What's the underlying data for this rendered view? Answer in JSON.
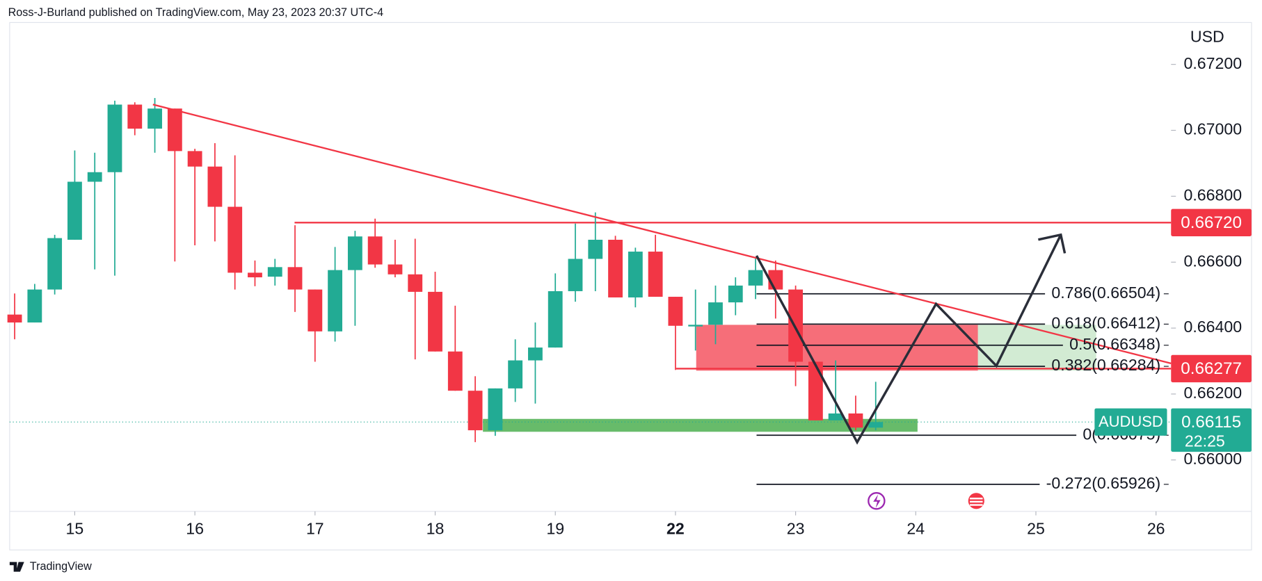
{
  "header": "Ross-J-Burland published on TradingView.com, May 23, 2023 20:37 UTC-4",
  "footer": "TradingView",
  "chart_data": {
    "type": "candlestick",
    "y_axis_label": "USD",
    "up_color": "#22ab94",
    "down_color": "#f23645",
    "x": [
      -12,
      -8,
      -4,
      0,
      4,
      8,
      12,
      16,
      20,
      24,
      28,
      32,
      36,
      40,
      44,
      48,
      52,
      56,
      60,
      64,
      68,
      72,
      76,
      80,
      84,
      88,
      92,
      96,
      100,
      104,
      108,
      112,
      116,
      120,
      124,
      128,
      132,
      136,
      140,
      144,
      148,
      152,
      156,
      160
    ],
    "open": [
      0.66441,
      0.66417,
      0.66517,
      0.66668,
      0.66844,
      0.66873,
      0.67078,
      0.67005,
      0.67066,
      0.66937,
      0.6689,
      0.66768,
      0.66568,
      0.66556,
      0.66585,
      0.66517,
      0.6639,
      0.66576,
      0.66678,
      0.66593,
      0.66563,
      0.6651,
      0.66329,
      0.6621,
      0.6609,
      0.66217,
      0.66302,
      0.66341,
      0.66512,
      0.6661,
      0.66668,
      0.66493,
      0.66632,
      0.66495,
      0.66405,
      0.6641,
      0.66478,
      0.66529,
      0.66576,
      0.66517,
      0.66298,
      0.6612,
      0.66141,
      0.66098
    ],
    "high": [
      0.66505,
      0.66534,
      0.66683,
      0.66939,
      0.66932,
      0.6709,
      0.67085,
      0.67098,
      0.67066,
      0.66944,
      0.66961,
      0.66924,
      0.66605,
      0.6661,
      0.66712,
      0.66517,
      0.66646,
      0.66695,
      0.66732,
      0.66668,
      0.66671,
      0.66571,
      0.66468,
      0.66254,
      0.66217,
      0.66366,
      0.66417,
      0.66566,
      0.66717,
      0.66751,
      0.6668,
      0.66644,
      0.66683,
      0.66495,
      0.66517,
      0.66529,
      0.66554,
      0.66615,
      0.66605,
      0.66529,
      0.66298,
      0.66302,
      0.66195,
      0.66237
    ],
    "low": [
      0.66366,
      0.66417,
      0.66502,
      0.66668,
      0.66578,
      0.66559,
      0.66985,
      0.66932,
      0.66602,
      0.66651,
      0.66663,
      0.66517,
      0.66527,
      0.66529,
      0.66449,
      0.66298,
      0.66359,
      0.66407,
      0.66583,
      0.66554,
      0.66305,
      0.66329,
      0.6621,
      0.66054,
      0.66073,
      0.66176,
      0.66171,
      0.66341,
      0.6648,
      0.66512,
      0.66493,
      0.66463,
      0.66495,
      0.66273,
      0.66332,
      0.66351,
      0.66439,
      0.66488,
      0.66429,
      0.66224,
      0.6612,
      0.6612,
      0.6609,
      0.6609
    ],
    "close": [
      0.66417,
      0.66517,
      0.66673,
      0.66844,
      0.66873,
      0.67078,
      0.67005,
      0.67066,
      0.66937,
      0.6689,
      0.66768,
      0.66568,
      0.66554,
      0.66585,
      0.66517,
      0.6639,
      0.66576,
      0.66678,
      0.66593,
      0.66563,
      0.6651,
      0.66329,
      0.6621,
      0.6609,
      0.66217,
      0.66302,
      0.66341,
      0.66512,
      0.6661,
      0.66668,
      0.66493,
      0.66632,
      0.66495,
      0.66407,
      0.6641,
      0.66478,
      0.66529,
      0.66576,
      0.66517,
      0.66298,
      0.6612,
      0.66141,
      0.66098,
      0.66115
    ],
    "xlim": [
      -13,
      219
    ],
    "xticks": [
      {
        "value": 0,
        "label": "15"
      },
      {
        "value": 24,
        "label": "16"
      },
      {
        "value": 48,
        "label": "17"
      },
      {
        "value": 72,
        "label": "18"
      },
      {
        "value": 96,
        "label": "19"
      },
      {
        "value": 120,
        "label": "22"
      },
      {
        "value": 144,
        "label": "23"
      },
      {
        "value": 168,
        "label": "24"
      },
      {
        "value": 192,
        "label": "25"
      },
      {
        "value": 216,
        "label": "26"
      }
    ],
    "bold_xtick_index": 5,
    "ylim": [
      0.65844,
      0.67327
    ],
    "yticks": [
      {
        "value": 0.672,
        "label": "0.67200"
      },
      {
        "value": 0.67,
        "label": "0.67000"
      },
      {
        "value": 0.668,
        "label": "0.66800"
      },
      {
        "value": 0.666,
        "label": "0.66600"
      },
      {
        "value": 0.664,
        "label": "0.66400"
      },
      {
        "value": 0.662,
        "label": "0.66200"
      },
      {
        "value": 0.66,
        "label": "0.66000"
      }
    ],
    "price_lines": [
      {
        "value": 0.6672,
        "label": "0.66720",
        "color": "#f23645"
      },
      {
        "value": 0.66277,
        "label": "0.66277",
        "color": "#f23645"
      }
    ],
    "fib_levels": [
      {
        "value": 0.66504,
        "label": "0.786(0.66504)"
      },
      {
        "value": 0.66412,
        "label": "0.618(0.66412)"
      },
      {
        "value": 0.66348,
        "label": "0.5(0.66348)"
      },
      {
        "value": 0.66284,
        "label": "0.382(0.66284)"
      },
      {
        "value": 0.66075,
        "label": "0(0.66075)"
      },
      {
        "value": 0.65926,
        "label": "-0.272(0.65926)"
      }
    ],
    "last_price": {
      "symbol": "AUDUSD",
      "value": 0.66115,
      "label": "0.66115",
      "countdown": "22:25",
      "color": "#22ab94"
    }
  }
}
